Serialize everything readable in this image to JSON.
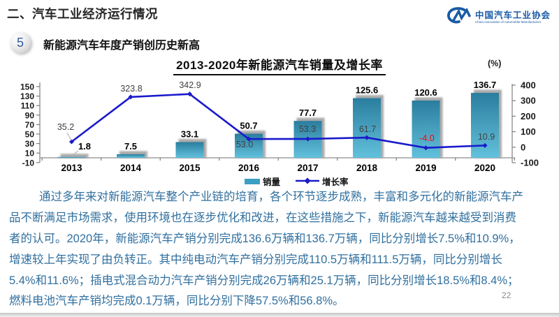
{
  "header": {
    "section_title": "二、汽车工业经济运行情况",
    "badge_number": "5",
    "subtitle": "新能源汽车年度产销创历史新高",
    "logo": {
      "org_name_cn": "中国汽车工业协会",
      "org_name_en": "China Association of Automobile Manufacturers",
      "brand_color": "#1a5aa6"
    }
  },
  "chart": {
    "title": "2013-2020年新能源汽车销量及增长率",
    "unit_label": "(%)"
  },
  "chart_data": {
    "type": "bar+line",
    "title": "2013-2020年新能源汽车销量及增长率",
    "categories": [
      "2013",
      "2014",
      "2015",
      "2016",
      "2017",
      "2018",
      "2019",
      "2020"
    ],
    "series": [
      {
        "name": "销量",
        "type": "bar",
        "axis": "left",
        "color": "#3a9fc2",
        "values": [
          1.8,
          7.5,
          33.1,
          50.7,
          77.7,
          125.6,
          120.6,
          136.7
        ]
      },
      {
        "name": "增长率",
        "type": "line",
        "axis": "right",
        "color": "#1a1acc",
        "values": [
          35.2,
          323.8,
          342.9,
          53.0,
          53.3,
          61.7,
          -4.0,
          10.9
        ]
      }
    ],
    "left_axis": {
      "ticks": [
        150,
        130,
        110,
        90,
        70,
        50,
        30,
        10,
        -10
      ],
      "min": -10,
      "max": 150
    },
    "right_axis": {
      "ticks": [
        400,
        300,
        200,
        100,
        0,
        -100
      ],
      "min": -100,
      "max": 400,
      "label": "(%)"
    },
    "negative_label_color": "#ff0000",
    "grid": false,
    "legend_position": "bottom"
  },
  "body": {
    "lines": [
      "通过多年来对新能源汽车整个产业链的培育，各个环节逐步成熟，丰富和多元化的新能源汽车产",
      "品不断满足市场需求，使用环境也在逐步优化和改进，在这些措施之下，新能源汽车越来越受到消费",
      "者的认可。2020年，新能源汽车产销分别完成136.6万辆和136.7万辆，同比分别增长7.5%和10.9%，",
      "增速较上年实现了由负转正。其中纯电动汽车产销分别完成110.5万辆和111.5万辆，同比分别增长",
      "5.4%和11.6%；插电式混合动力汽车产销分别完成26万辆和25.1万辆，同比分别增长18.5%和8.4%；",
      "燃料电池汽车产销均完成0.1万辆，同比分别下降57.5%和56.8%。"
    ]
  },
  "page_number": "22"
}
